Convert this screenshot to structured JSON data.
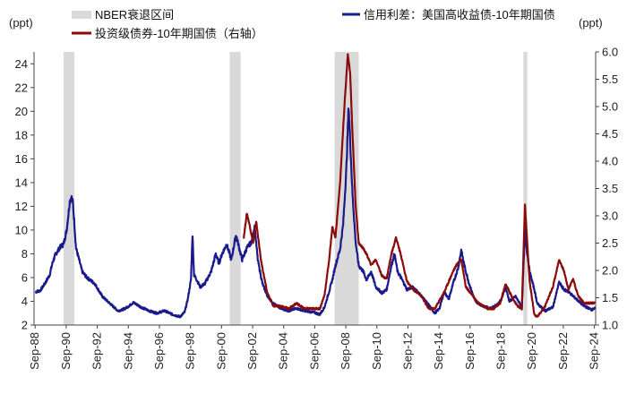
{
  "chart_data": {
    "type": "line",
    "title": "",
    "y_left_unit": "(ppt)",
    "y_right_unit": "(ppt)",
    "xlabel": "",
    "ylabel_left": "",
    "ylabel_right": "",
    "xlim": [
      1988.6,
      2024.75
    ],
    "ylim_left": [
      2,
      25
    ],
    "ylim_right": [
      1.0,
      6.0
    ],
    "y_left_ticks": [
      2,
      4,
      6,
      8,
      10,
      12,
      14,
      16,
      18,
      20,
      22,
      24
    ],
    "y_right_ticks": [
      "1.0",
      "1.5",
      "2.0",
      "2.5",
      "3.0",
      "3.5",
      "4.0",
      "4.5",
      "5.0",
      "5.5",
      "6.0"
    ],
    "x_tick_labels": [
      "Sep-88",
      "Sep-90",
      "Sep-92",
      "Sep-94",
      "Sep-96",
      "Sep-98",
      "Sep-00",
      "Sep-02",
      "Sep-04",
      "Sep-06",
      "Sep-08",
      "Sep-10",
      "Sep-12",
      "Sep-14",
      "Sep-16",
      "Sep-18",
      "Sep-20",
      "Sep-22",
      "Sep-24"
    ],
    "x_tick_values": [
      1988.67,
      1990.67,
      1992.67,
      1994.67,
      1996.67,
      1998.67,
      2000.67,
      2002.67,
      2004.67,
      2006.67,
      2008.67,
      2010.67,
      2012.67,
      2014.67,
      2016.67,
      2018.67,
      2020.67,
      2022.67,
      2024.67
    ],
    "grid": false,
    "legend_position": "top",
    "legend": [
      {
        "label": "NBER衰退区间",
        "kind": "bar",
        "color": "#d9d9d9"
      },
      {
        "label": "信用利差：美国高收益债-10年期国债",
        "kind": "line",
        "color": "#1a1a8c"
      },
      {
        "label": "投资级债券-10年期国债（右轴）",
        "kind": "line",
        "color": "#8b0a0a"
      }
    ],
    "recessions": [
      [
        1990.5,
        1991.2
      ],
      [
        2001.2,
        2001.9
      ],
      [
        2007.95,
        2009.5
      ],
      [
        2020.1,
        2020.35
      ]
    ],
    "series": [
      {
        "name": "信用利差：美国高收益债-10年期国债",
        "axis": "left",
        "color": "#1a1a8c",
        "x": [
          1988.7,
          1989.0,
          1989.3,
          1989.6,
          1989.8,
          1990.0,
          1990.3,
          1990.5,
          1990.7,
          1990.9,
          1991.0,
          1991.1,
          1991.2,
          1991.3,
          1991.5,
          1991.7,
          1992.0,
          1992.5,
          1993.0,
          1993.5,
          1994.0,
          1994.3,
          1994.6,
          1995.0,
          1995.5,
          1996.0,
          1996.5,
          1997.0,
          1997.5,
          1998.0,
          1998.3,
          1998.5,
          1998.7,
          1998.8,
          1998.9,
          1999.0,
          1999.3,
          1999.6,
          2000.0,
          2000.3,
          2000.5,
          2000.7,
          2001.0,
          2001.3,
          2001.6,
          2001.9,
          2002.0,
          2002.3,
          2002.6,
          2002.8,
          2003.0,
          2003.3,
          2003.6,
          2004.0,
          2004.5,
          2005.0,
          2005.5,
          2006.0,
          2006.5,
          2007.0,
          2007.3,
          2007.5,
          2007.8,
          2008.0,
          2008.3,
          2008.5,
          2008.7,
          2008.85,
          2008.95,
          2009.1,
          2009.3,
          2009.5,
          2009.8,
          2010.0,
          2010.3,
          2010.6,
          2011.0,
          2011.3,
          2011.6,
          2011.8,
          2012.0,
          2012.3,
          2012.6,
          2013.0,
          2013.5,
          2014.0,
          2014.4,
          2014.7,
          2015.0,
          2015.3,
          2015.6,
          2015.9,
          2016.1,
          2016.3,
          2016.6,
          2017.0,
          2017.5,
          2018.0,
          2018.4,
          2018.7,
          2018.95,
          2019.2,
          2019.6,
          2020.0,
          2020.2,
          2020.3,
          2020.5,
          2020.8,
          2021.0,
          2021.5,
          2022.0,
          2022.4,
          2022.7,
          2023.0,
          2023.5,
          2024.0,
          2024.5,
          2024.7
        ],
        "values": [
          4.8,
          4.9,
          5.5,
          6.2,
          7.3,
          8.0,
          8.6,
          8.8,
          10.0,
          12.4,
          12.8,
          12.3,
          10.5,
          8.5,
          7.5,
          6.5,
          6.0,
          5.5,
          4.4,
          3.8,
          3.2,
          3.3,
          3.5,
          3.9,
          3.5,
          3.2,
          3.0,
          3.2,
          2.9,
          2.7,
          3.1,
          4.2,
          5.8,
          9.6,
          6.2,
          6.0,
          5.2,
          5.5,
          6.5,
          8.0,
          7.2,
          8.0,
          8.8,
          7.5,
          9.6,
          8.0,
          7.5,
          8.5,
          9.0,
          10.3,
          7.5,
          5.5,
          4.5,
          3.8,
          3.4,
          3.2,
          3.4,
          3.2,
          3.1,
          2.9,
          3.5,
          4.4,
          5.8,
          7.0,
          8.4,
          10.5,
          15.0,
          20.5,
          17.5,
          13.0,
          9.0,
          7.0,
          6.5,
          5.8,
          6.5,
          5.2,
          4.7,
          5.0,
          7.0,
          8.0,
          6.5,
          5.8,
          5.0,
          5.2,
          4.5,
          3.7,
          3.0,
          3.4,
          4.8,
          4.2,
          5.6,
          6.8,
          8.3,
          7.0,
          5.5,
          4.0,
          3.6,
          3.4,
          3.7,
          4.2,
          5.2,
          4.0,
          4.4,
          3.5,
          10.0,
          8.5,
          6.5,
          5.0,
          3.8,
          3.2,
          3.5,
          5.6,
          5.0,
          4.8,
          4.2,
          3.6,
          3.3,
          3.4
        ]
      },
      {
        "name": "投资级债券-10年期国债（右轴）",
        "axis": "right",
        "color": "#8b0a0a",
        "x": [
          2002.1,
          2002.3,
          2002.5,
          2002.7,
          2002.9,
          2003.2,
          2003.6,
          2004.0,
          2004.5,
          2005.0,
          2005.5,
          2006.0,
          2006.5,
          2007.0,
          2007.3,
          2007.6,
          2007.8,
          2008.0,
          2008.3,
          2008.6,
          2008.8,
          2008.95,
          2009.1,
          2009.3,
          2009.5,
          2009.8,
          2010.0,
          2010.3,
          2010.6,
          2011.0,
          2011.3,
          2011.6,
          2011.9,
          2012.2,
          2012.6,
          2013.0,
          2013.5,
          2014.0,
          2014.4,
          2014.7,
          2015.0,
          2015.3,
          2015.6,
          2015.9,
          2016.1,
          2016.4,
          2016.8,
          2017.2,
          2017.8,
          2018.2,
          2018.6,
          2018.95,
          2019.3,
          2019.7,
          2020.0,
          2020.2,
          2020.35,
          2020.5,
          2020.8,
          2021.0,
          2021.5,
          2022.0,
          2022.4,
          2022.7,
          2023.0,
          2023.3,
          2023.6,
          2024.0,
          2024.4,
          2024.7
        ],
        "values": [
          2.6,
          3.05,
          2.8,
          2.5,
          2.9,
          2.2,
          1.6,
          1.35,
          1.35,
          1.3,
          1.4,
          1.3,
          1.3,
          1.3,
          1.55,
          2.2,
          2.8,
          2.6,
          3.6,
          5.1,
          5.95,
          5.6,
          4.5,
          3.2,
          2.5,
          2.4,
          2.3,
          2.1,
          2.2,
          1.9,
          1.85,
          2.3,
          2.6,
          2.3,
          1.8,
          1.65,
          1.55,
          1.3,
          1.3,
          1.45,
          1.6,
          1.8,
          2.0,
          2.15,
          2.2,
          1.7,
          1.55,
          1.4,
          1.3,
          1.3,
          1.4,
          1.75,
          1.55,
          1.35,
          1.3,
          3.2,
          2.5,
          1.8,
          1.2,
          1.15,
          1.35,
          1.7,
          2.2,
          2.0,
          1.65,
          1.85,
          1.55,
          1.4,
          1.4,
          1.4
        ]
      }
    ]
  }
}
